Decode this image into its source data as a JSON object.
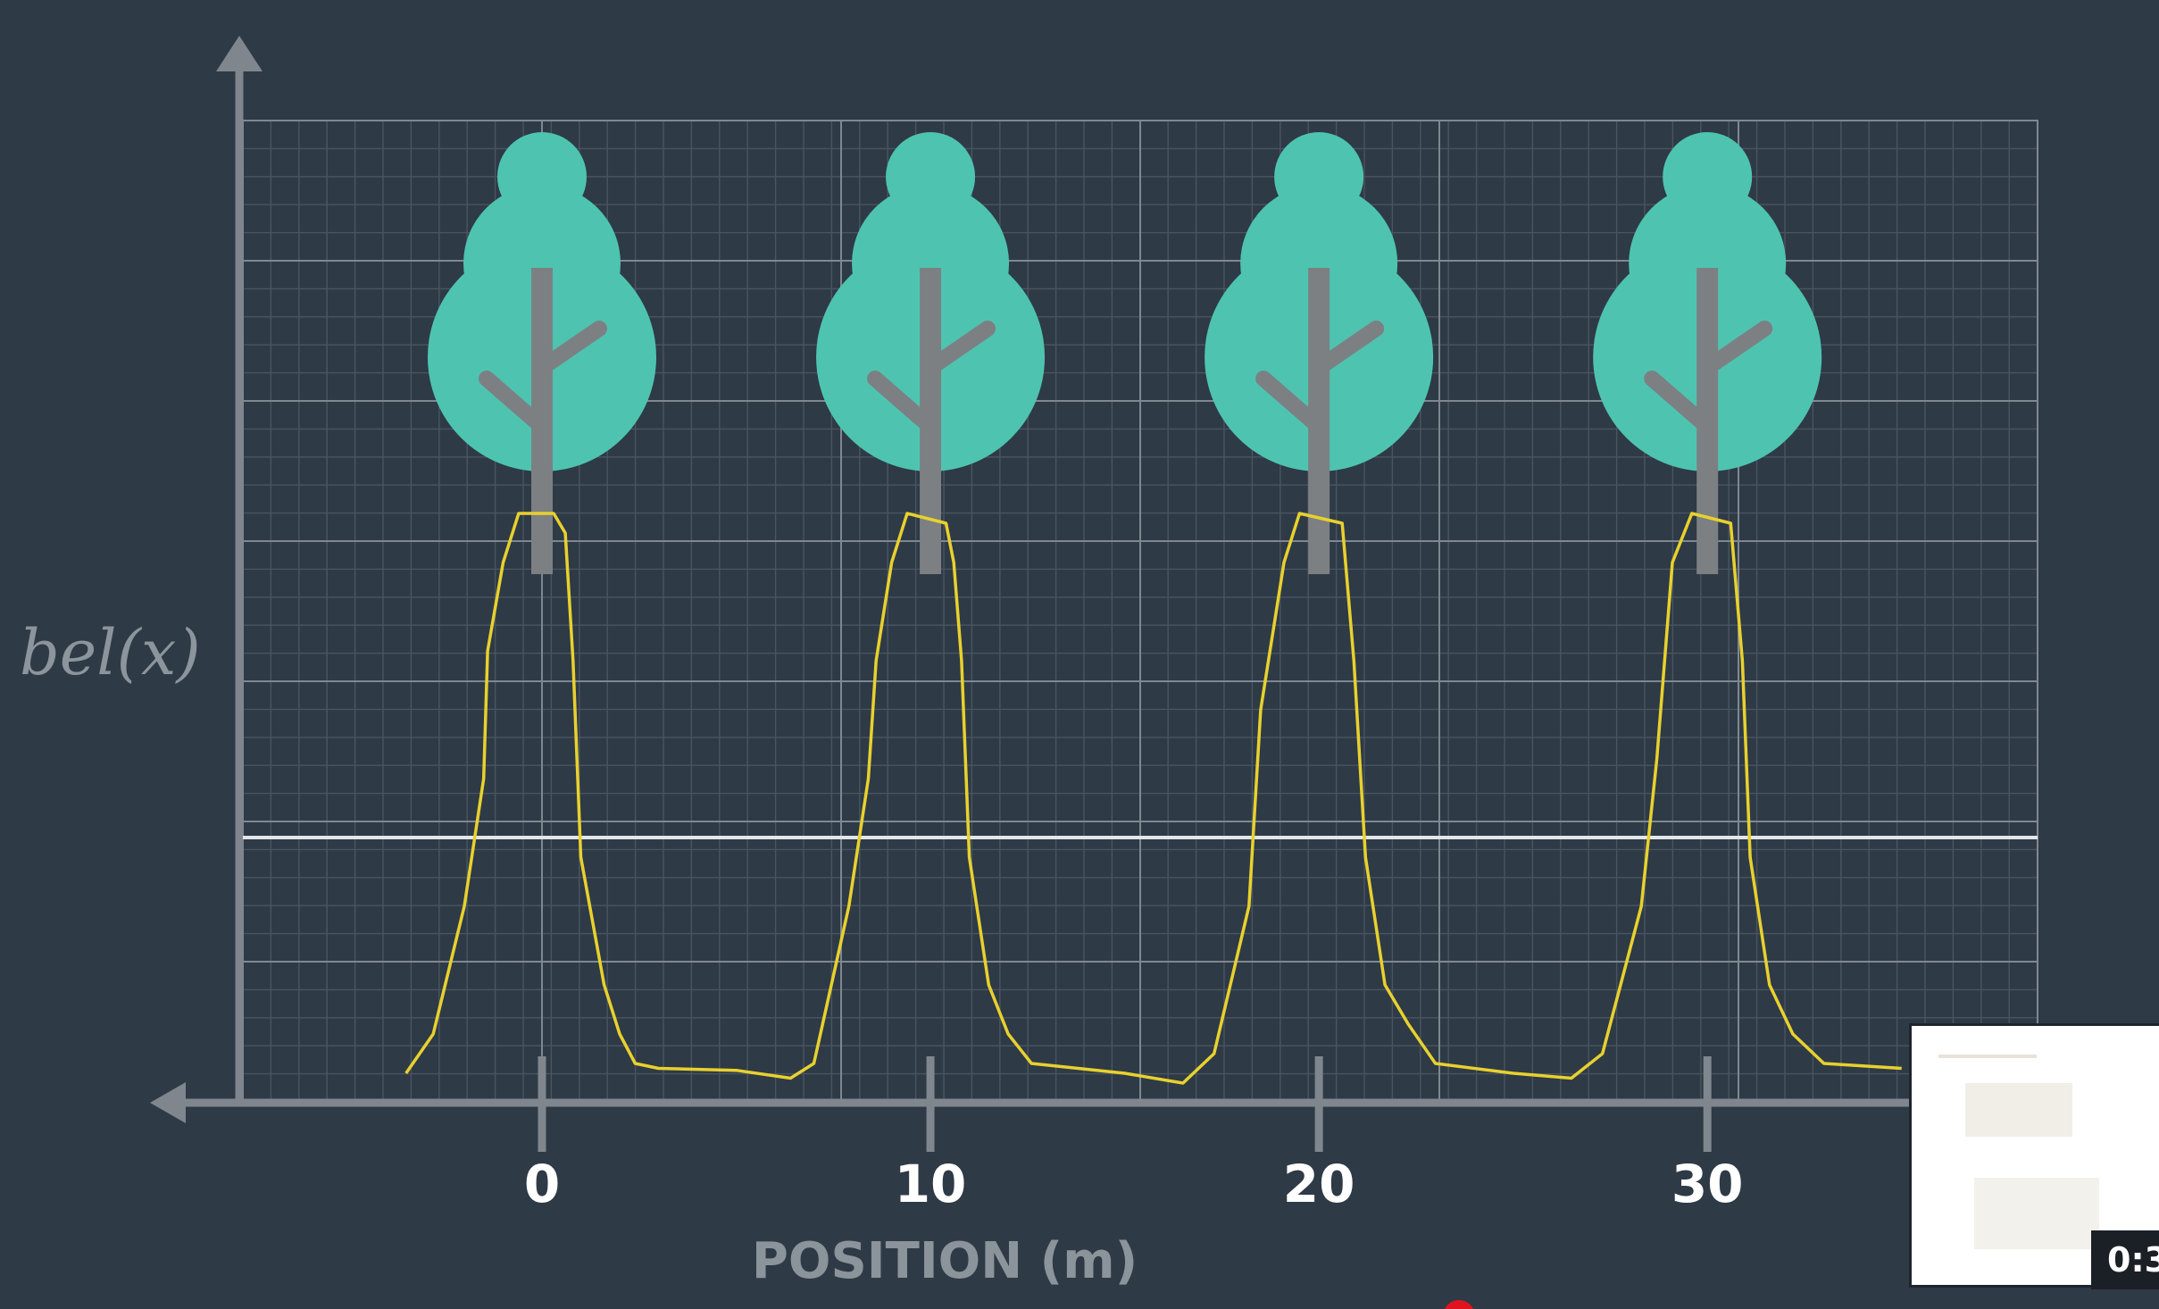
{
  "chart_data": {
    "type": "line",
    "ylabel": "bel(x)",
    "xlabel": "POSITION (m)",
    "xticks": [
      "0",
      "10",
      "20",
      "30"
    ],
    "xtick_values": [
      0,
      10,
      20,
      30
    ],
    "xlim": [
      -7.7,
      38.5
    ],
    "ylim": [
      0,
      1
    ],
    "threshold_line": 0.27,
    "landmarks": [
      {
        "name": "tree",
        "position": 0
      },
      {
        "name": "tree",
        "position": 10
      },
      {
        "name": "tree",
        "position": 20
      },
      {
        "name": "tree",
        "position": 30
      }
    ],
    "series": [
      {
        "color": "#e8d12e",
        "points": [
          [
            -3.5,
            0.03
          ],
          [
            -2.8,
            0.07
          ],
          [
            -2.0,
            0.2
          ],
          [
            -1.5,
            0.33
          ],
          [
            -1.4,
            0.46
          ],
          [
            -1.0,
            0.55
          ],
          [
            -0.6,
            0.6
          ],
          [
            0.3,
            0.6
          ],
          [
            0.6,
            0.58
          ],
          [
            0.8,
            0.45
          ],
          [
            1.0,
            0.25
          ],
          [
            1.6,
            0.12
          ],
          [
            2.0,
            0.07
          ],
          [
            2.4,
            0.04
          ],
          [
            3.0,
            0.035
          ],
          [
            5.0,
            0.033
          ],
          [
            6.4,
            0.025
          ],
          [
            7.0,
            0.04
          ],
          [
            7.9,
            0.2
          ],
          [
            8.4,
            0.33
          ],
          [
            8.6,
            0.45
          ],
          [
            9.0,
            0.55
          ],
          [
            9.4,
            0.6
          ],
          [
            10.4,
            0.59
          ],
          [
            10.6,
            0.55
          ],
          [
            10.8,
            0.45
          ],
          [
            11.0,
            0.25
          ],
          [
            11.5,
            0.12
          ],
          [
            12.0,
            0.07
          ],
          [
            12.6,
            0.04
          ],
          [
            15.0,
            0.03
          ],
          [
            16.5,
            0.02
          ],
          [
            17.3,
            0.05
          ],
          [
            18.2,
            0.2
          ],
          [
            18.5,
            0.4
          ],
          [
            19.1,
            0.55
          ],
          [
            19.5,
            0.6
          ],
          [
            20.6,
            0.59
          ],
          [
            20.9,
            0.45
          ],
          [
            21.2,
            0.25
          ],
          [
            21.7,
            0.12
          ],
          [
            22.3,
            0.08
          ],
          [
            23.0,
            0.04
          ],
          [
            25.0,
            0.03
          ],
          [
            26.5,
            0.025
          ],
          [
            27.3,
            0.05
          ],
          [
            28.3,
            0.2
          ],
          [
            28.7,
            0.35
          ],
          [
            29.1,
            0.55
          ],
          [
            29.6,
            0.6
          ],
          [
            30.6,
            0.59
          ],
          [
            30.9,
            0.45
          ],
          [
            31.1,
            0.25
          ],
          [
            31.6,
            0.12
          ],
          [
            32.2,
            0.07
          ],
          [
            33.0,
            0.04
          ],
          [
            35.0,
            0.035
          ]
        ]
      }
    ],
    "grid": true
  },
  "colors": {
    "background": "#2e3a46",
    "grid_minor": "#4a5560",
    "grid_major": "#7f8890",
    "axis": "#7f868d",
    "tree_foliage": "#4ec4b0",
    "tree_trunk": "#7c8083",
    "belief_line": "#e8d12e",
    "threshold_line": "#e2e6ea"
  },
  "player": {
    "time_display": "0:3"
  }
}
